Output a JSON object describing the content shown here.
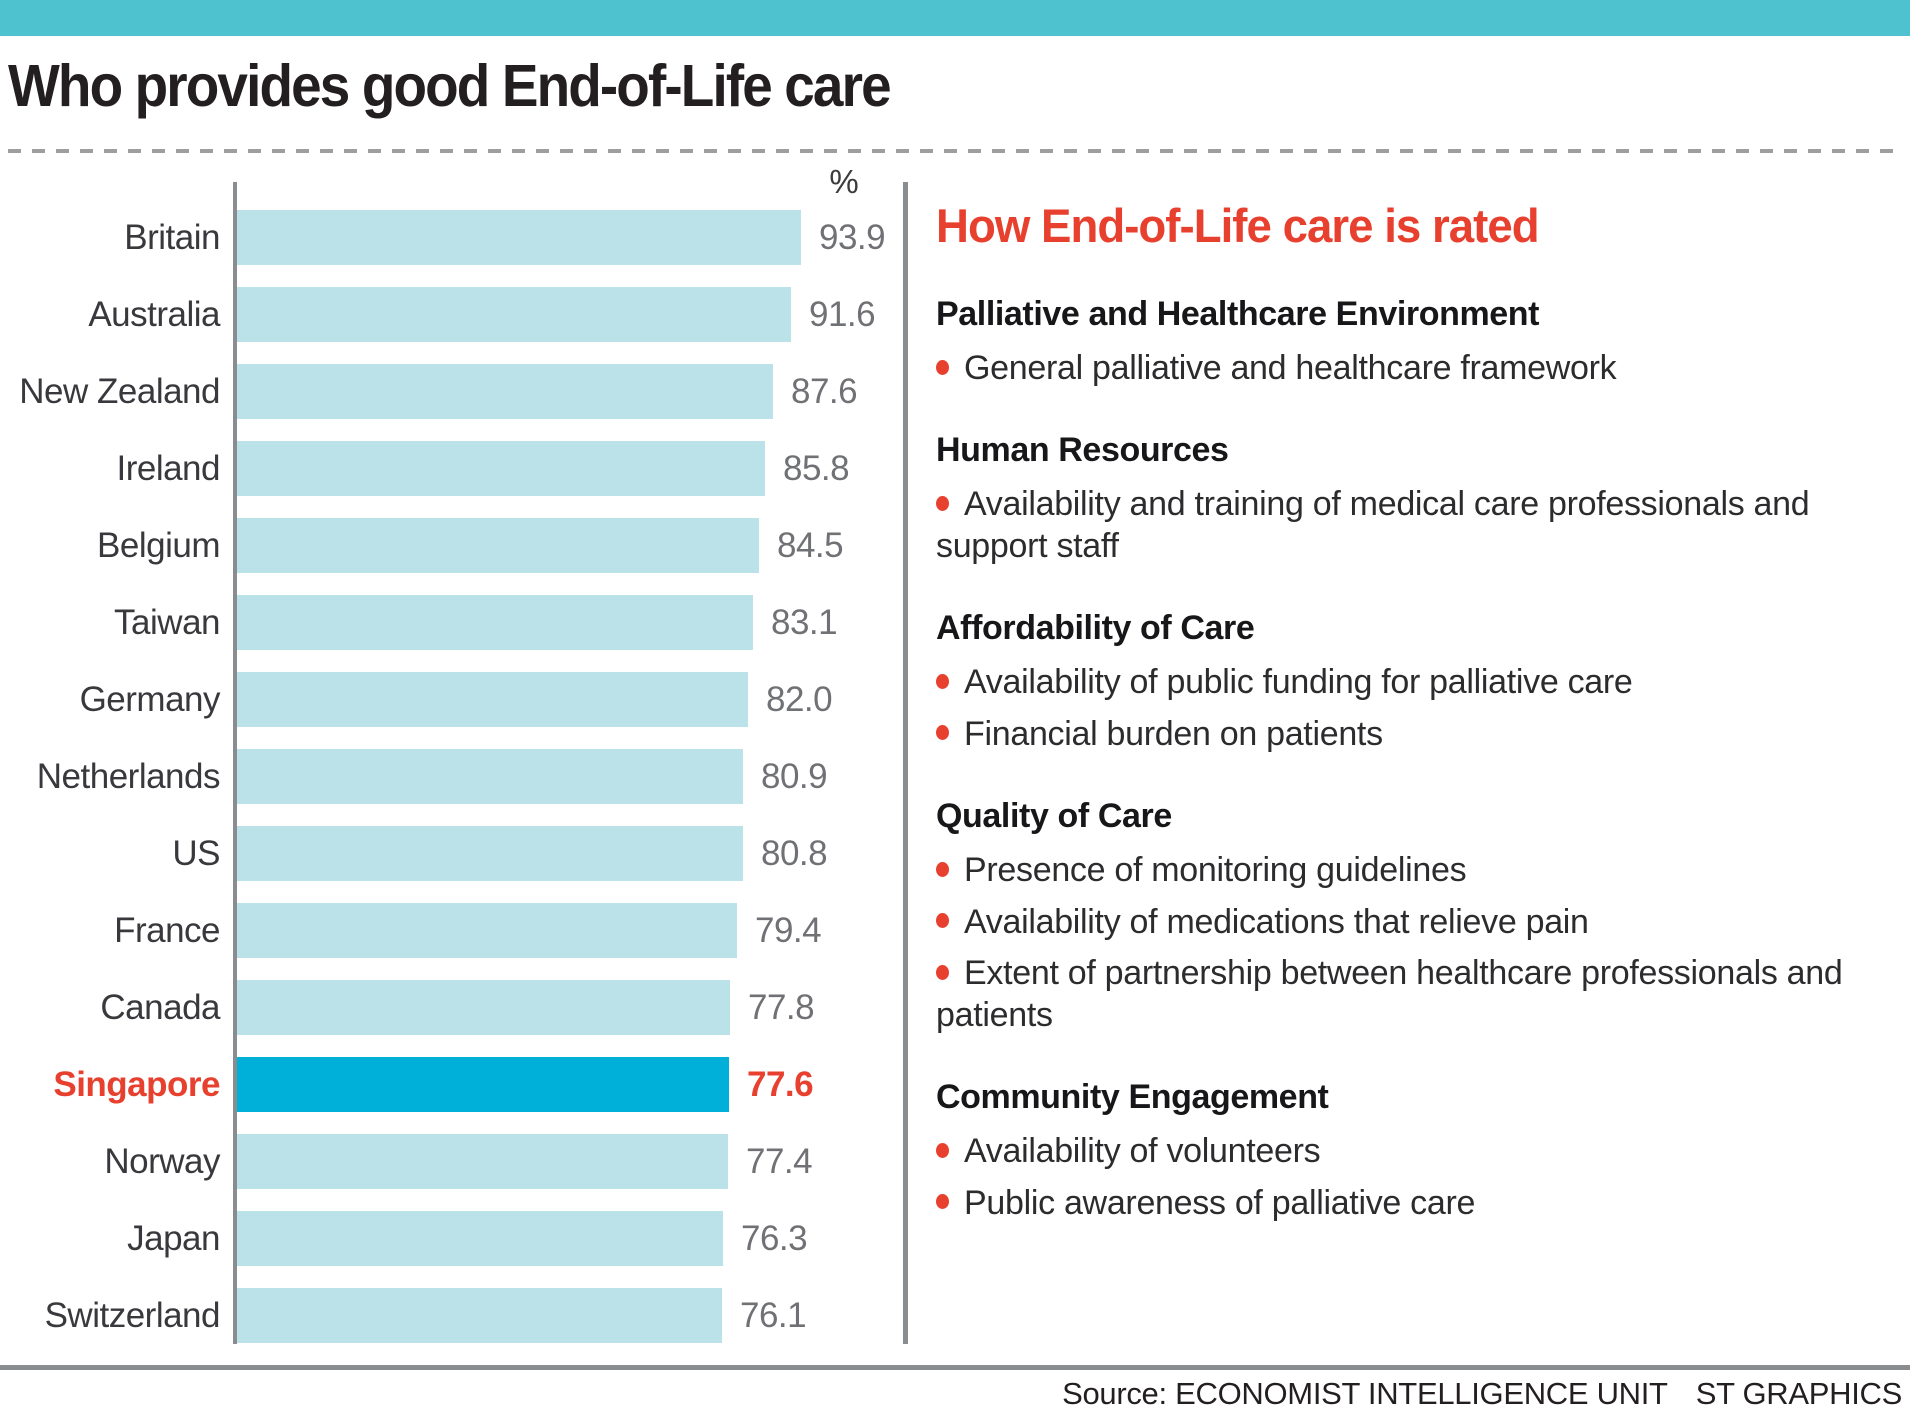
{
  "colors": {
    "banner_teal": "#4ec2cf",
    "bar_light_blue": "#bce2e9",
    "bar_highlight_cyan": "#00b0d8",
    "accent_red": "#e8402e",
    "axis_gray": "#8a8d8f",
    "value_gray": "#707175",
    "label_dark": "#39393d"
  },
  "chart_data": {
    "type": "bar",
    "orientation": "horizontal",
    "title": "Who provides good End-of-Life care",
    "unit_label": "%",
    "categories": [
      "Britain",
      "Australia",
      "New Zealand",
      "Ireland",
      "Belgium",
      "Taiwan",
      "Germany",
      "Netherlands",
      "US",
      "France",
      "Canada",
      "Singapore",
      "Norway",
      "Japan",
      "Switzerland"
    ],
    "values": [
      93.9,
      91.6,
      87.6,
      85.8,
      84.5,
      83.1,
      82.0,
      80.9,
      80.8,
      79.4,
      77.8,
      77.6,
      77.4,
      76.3,
      76.1
    ],
    "value_labels": [
      "93.9",
      "91.6",
      "87.6",
      "85.8",
      "84.5",
      "83.1",
      "82.0",
      "80.9",
      "80.8",
      "79.4",
      "77.8",
      "77.6",
      "77.4",
      "76.3",
      "76.1"
    ],
    "highlight_category": "Singapore",
    "legend_position": "none",
    "grid": false
  },
  "panel": {
    "title": "How End-of-Life care is rated",
    "sections": [
      {
        "heading": "Palliative and Healthcare Environment",
        "bullets": [
          "General palliative and healthcare framework"
        ]
      },
      {
        "heading": "Human Resources",
        "bullets": [
          "Availability and training of medical care professionals and support staff"
        ]
      },
      {
        "heading": "Affordability of Care",
        "bullets": [
          "Availability of public funding for palliative care",
          "Financial burden on patients"
        ]
      },
      {
        "heading": "Quality of Care",
        "bullets": [
          "Presence of monitoring guidelines",
          "Availability of medications that relieve pain",
          "Extent of partnership between healthcare professionals and patients"
        ]
      },
      {
        "heading": "Community Engagement",
        "bullets": [
          "Availability of volunteers",
          "Public awareness of palliative care"
        ]
      }
    ]
  },
  "footer": {
    "source": "Source: ECONOMIST INTELLIGENCE UNIT",
    "credit": "ST GRAPHICS"
  }
}
